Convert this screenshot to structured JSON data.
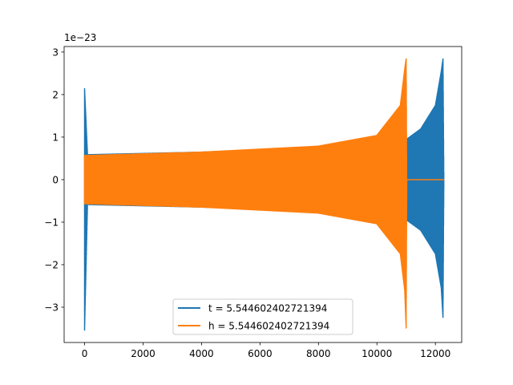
{
  "chart_data": {
    "type": "line",
    "title": "",
    "xlabel": "",
    "ylabel": "",
    "offset_text": "1e−23",
    "xlim": [
      -700,
      12900
    ],
    "ylim": [
      -3.83,
      3.13
    ],
    "xticks": [
      0,
      2000,
      4000,
      6000,
      8000,
      10000,
      12000
    ],
    "xtick_labels": [
      "0",
      "2000",
      "4000",
      "6000",
      "8000",
      "10000",
      "12000"
    ],
    "yticks": [
      -3,
      -2,
      -1,
      0,
      1,
      2,
      3
    ],
    "ytick_labels": [
      "−3",
      "−2",
      "−1",
      "0",
      "1",
      "2",
      "3"
    ],
    "grid": false,
    "legend_position": "lower center",
    "series": [
      {
        "name": "t = 5.544602402721394",
        "color": "#1f77b4",
        "envelope_points": [
          {
            "x": 0,
            "upper": 2.15,
            "lower": -3.55
          },
          {
            "x": 100,
            "upper": 0.6,
            "lower": -0.6
          },
          {
            "x": 4000,
            "upper": 0.66,
            "lower": -0.66
          },
          {
            "x": 8000,
            "upper": 0.76,
            "lower": -0.76
          },
          {
            "x": 11000,
            "upper": 0.95,
            "lower": -0.95
          },
          {
            "x": 11500,
            "upper": 1.2,
            "lower": -1.2
          },
          {
            "x": 12000,
            "upper": 1.75,
            "lower": -1.75
          },
          {
            "x": 12200,
            "upper": 2.55,
            "lower": -2.55
          },
          {
            "x": 12260,
            "upper": 2.85,
            "lower": -3.25
          },
          {
            "x": 12290,
            "upper": 0.0,
            "lower": 0.0
          }
        ]
      },
      {
        "name": "h = 5.544602402721394",
        "color": "#ff7f0e",
        "envelope_points": [
          {
            "x": 0,
            "upper": 0.58,
            "lower": -0.58
          },
          {
            "x": 4000,
            "upper": 0.66,
            "lower": -0.66
          },
          {
            "x": 8000,
            "upper": 0.8,
            "lower": -0.8
          },
          {
            "x": 10000,
            "upper": 1.05,
            "lower": -1.05
          },
          {
            "x": 10800,
            "upper": 1.75,
            "lower": -1.75
          },
          {
            "x": 10950,
            "upper": 2.6,
            "lower": -2.6
          },
          {
            "x": 11000,
            "upper": 2.85,
            "lower": -3.5
          },
          {
            "x": 11020,
            "upper": 0.0,
            "lower": 0.0
          },
          {
            "x": 12300,
            "upper": 0.0,
            "lower": 0.0
          }
        ]
      }
    ]
  }
}
